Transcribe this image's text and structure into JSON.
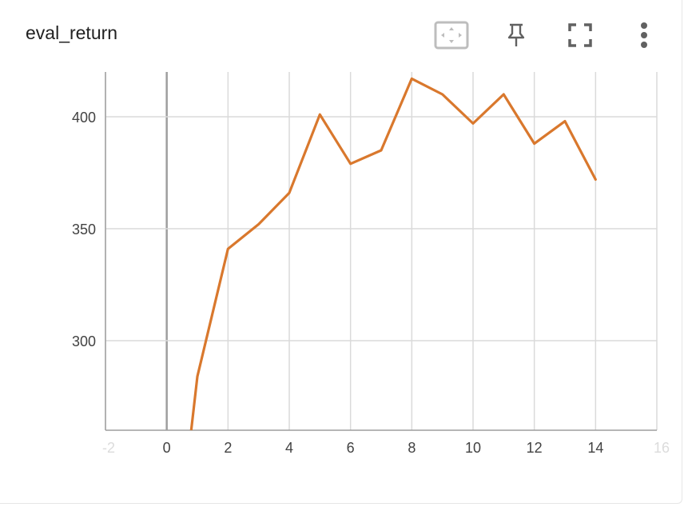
{
  "card": {
    "title": "eval_return"
  },
  "toolbar": {
    "icons": [
      "fit-domain-icon",
      "pin-icon",
      "fullscreen-icon",
      "more-vert-icon"
    ]
  },
  "chart_data": {
    "type": "line",
    "title": "eval_return",
    "xlabel": "",
    "ylabel": "",
    "xlim": [
      -2,
      16
    ],
    "ylim": [
      260,
      420
    ],
    "x_ticks": [
      -2,
      0,
      2,
      4,
      6,
      8,
      10,
      12,
      14,
      16
    ],
    "y_ticks": [
      300,
      350,
      400
    ],
    "grid": true,
    "legend": "none",
    "series": [
      {
        "color": "#d9782d",
        "x": [
          0.8,
          1,
          2,
          3,
          4,
          5,
          6,
          7,
          8,
          9,
          10,
          11,
          12,
          13,
          14
        ],
        "y": [
          260,
          284,
          341,
          352,
          366,
          401,
          379,
          385,
          417,
          410,
          397,
          410,
          388,
          398,
          372
        ]
      }
    ]
  }
}
